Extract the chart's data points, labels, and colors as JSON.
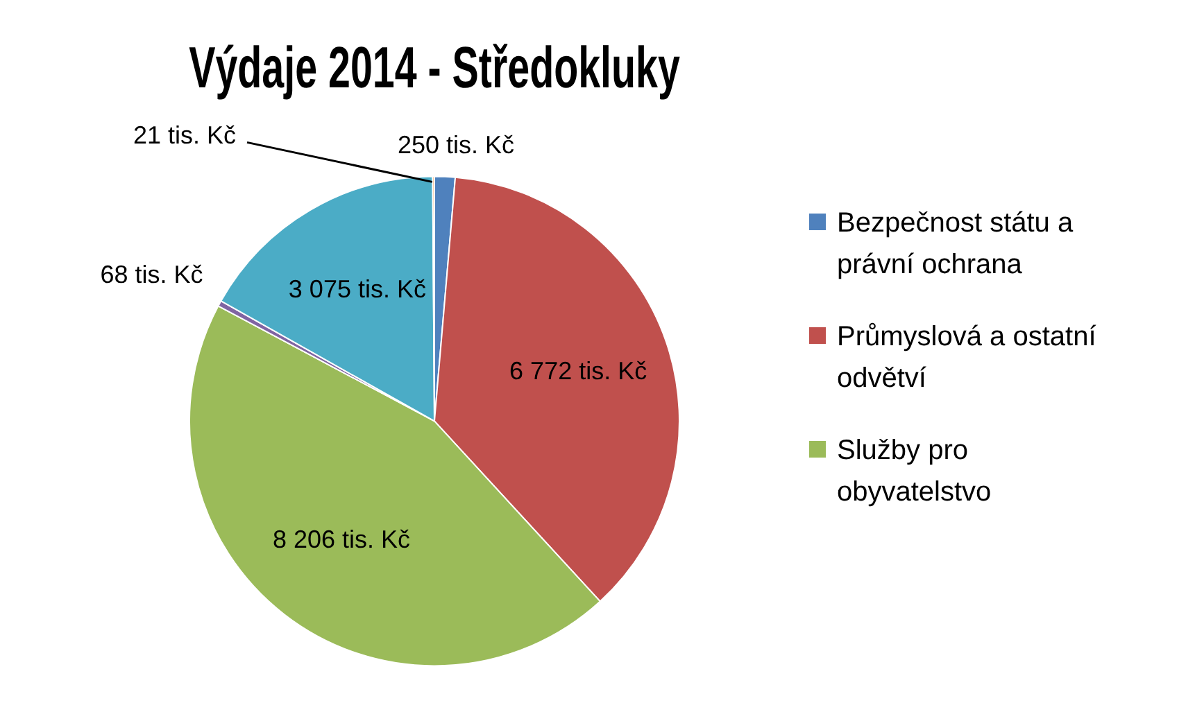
{
  "chart_data": {
    "type": "pie",
    "title": "Výdaje 2014 - Středokluky",
    "categories": [
      "Bezpečnost státu a právní ochrana",
      "Průmyslová a ostatní odvětví",
      "Služby pro obyvatelstvo",
      null,
      null,
      null
    ],
    "values": [
      250,
      6772,
      8206,
      68,
      3075,
      21
    ],
    "colors": [
      "#4f81bd",
      "#c0504d",
      "#9bbb59",
      "#8064a2",
      "#4bacc6",
      "#f79646"
    ],
    "value_labels": [
      "250 tis. Kč",
      "6 772 tis. Kč",
      "8 206 tis. Kč",
      "68 tis. Kč",
      "3 075 tis. Kč",
      "21 tis. Kč"
    ],
    "legend": "right"
  }
}
